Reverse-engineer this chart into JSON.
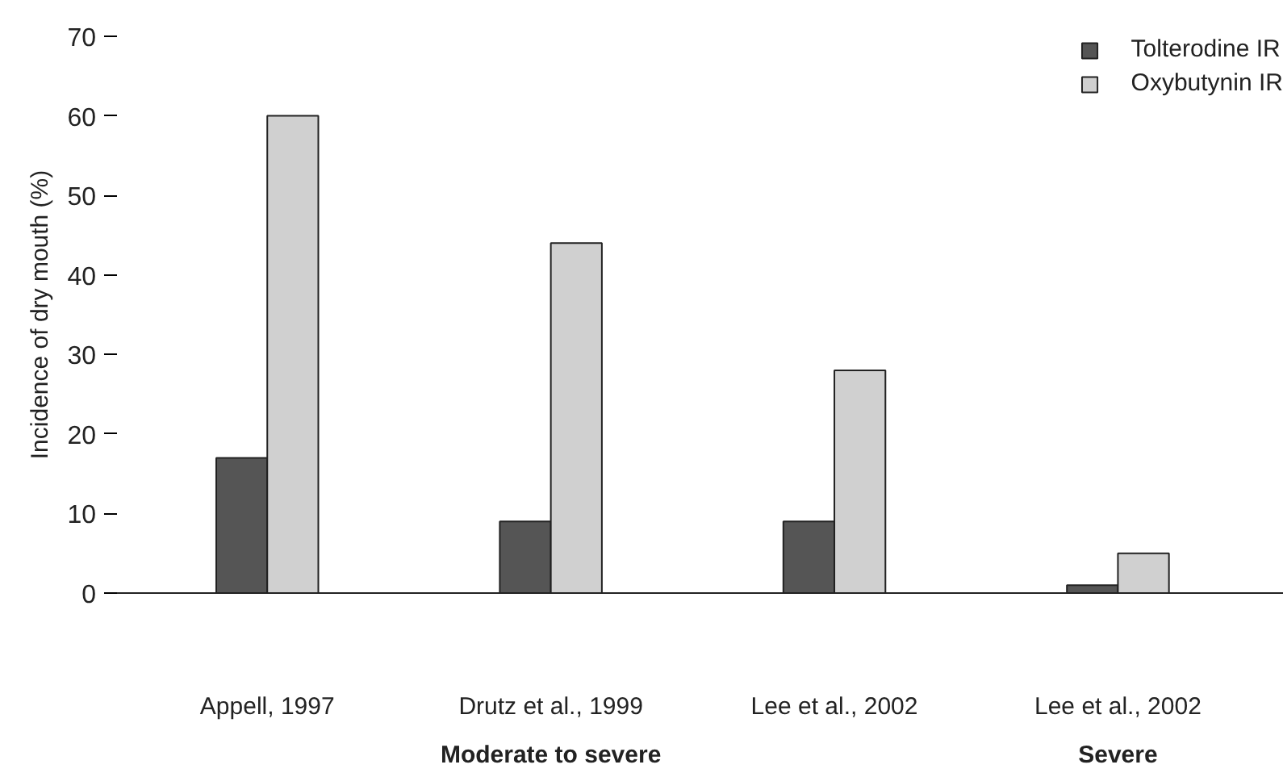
{
  "chart_data": {
    "type": "bar",
    "ylabel": "Incidence of dry mouth (%)",
    "categories": [
      "Appell, 1997",
      "Drutz et al., 1999",
      "Lee et al., 2002",
      "Lee et al., 2002"
    ],
    "series": [
      {
        "name": "Tolterodine IR",
        "color": "#555555",
        "values": [
          17,
          9,
          9,
          1
        ]
      },
      {
        "name": "Oxybutynin IR",
        "color": "#d0d0d0",
        "values": [
          60,
          44,
          28,
          5
        ]
      }
    ],
    "ylim": [
      0,
      70
    ],
    "yticks": [
      0,
      10,
      20,
      30,
      40,
      50,
      60,
      70
    ],
    "grid": false,
    "legend": "top right",
    "annotations": [
      "Moderate to severe",
      "Severe"
    ]
  }
}
